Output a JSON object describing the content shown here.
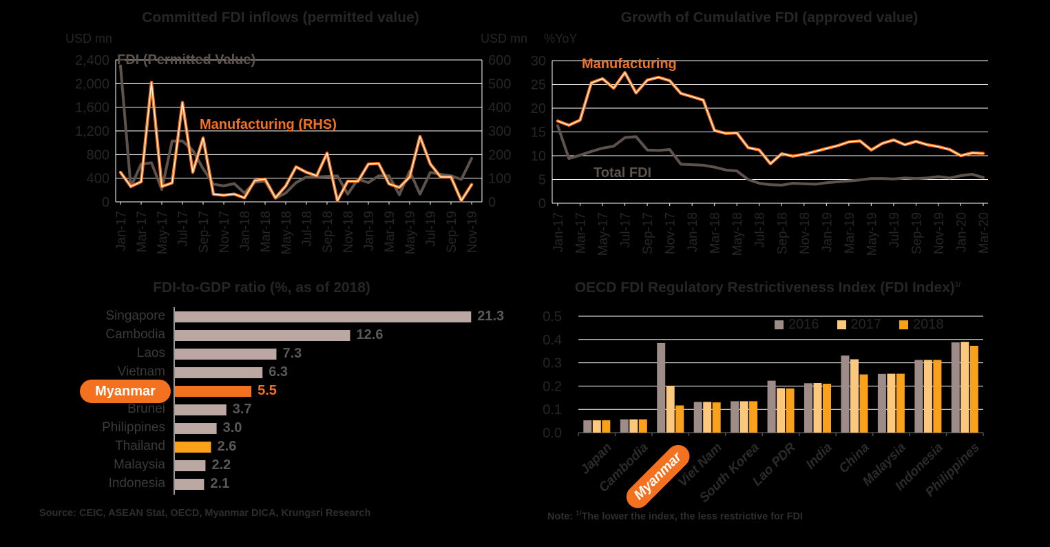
{
  "colors": {
    "background": "#000000",
    "grid": "#FFFFFF",
    "orange": "#F4711F",
    "orange_line": "#F8700F",
    "amber": "#F9A11B",
    "light_orange": "#FBC87D",
    "gray_line": "#5E524C",
    "bar_gray": "#BCA8A2",
    "bar_gray_dark": "#9D8C88",
    "text_dark": "#262626",
    "text_gray": "#595959",
    "axis_dark": "#4F4F4F"
  },
  "chart_data": [
    {
      "type": "line",
      "title": "Committed FDI inflows (permitted value)",
      "left_axis_unit": "USD mn",
      "right_axis_unit": "USD mn",
      "left_tick_labels": [
        "2,400",
        "2,000",
        "1,600",
        "1,200",
        "800",
        "400",
        "0"
      ],
      "right_tick_labels": [
        "600",
        "500",
        "400",
        "300",
        "200",
        "100",
        "0"
      ],
      "left_ylim": [
        0,
        2400
      ],
      "right_ylim": [
        0,
        600
      ],
      "x_tick_labels": [
        "Jan-17",
        "Mar-17",
        "May-17",
        "Jul-17",
        "Sep-17",
        "Nov-17",
        "Jan-18",
        "Mar-18",
        "May-18",
        "Jul-18",
        "Sep-18",
        "Nov-18",
        "Jan-19",
        "Mar-19",
        "May-19",
        "Jul-19",
        "Sep-19",
        "Nov-19"
      ],
      "series": [
        {
          "name": "FDI (Permitted Value)",
          "axis": "left",
          "color_key": "gray_line",
          "style": "solid",
          "values": [
            2300,
            250,
            640,
            660,
            210,
            1030,
            1030,
            870,
            560,
            300,
            270,
            310,
            150,
            330,
            350,
            60,
            150,
            325,
            420,
            420,
            430,
            440,
            130,
            385,
            325,
            440,
            440,
            120,
            520,
            130,
            500,
            465,
            440,
            380,
            735
          ]
        },
        {
          "name": "Manufacturing (RHS)",
          "axis": "right",
          "color_key": "orange_line",
          "style": "outlined",
          "values": [
            125,
            65,
            85,
            505,
            65,
            80,
            420,
            125,
            270,
            32,
            28,
            33,
            17,
            90,
            96,
            17,
            67,
            148,
            125,
            110,
            206,
            5,
            87,
            87,
            160,
            162,
            76,
            61,
            105,
            276,
            160,
            105,
            105,
            5,
            73
          ]
        }
      ]
    },
    {
      "type": "line",
      "title": "Growth of Cumulative FDI (approved value)",
      "left_axis_unit": "%YoY",
      "left_tick_labels": [
        "30",
        "25",
        "20",
        "15",
        "10",
        "5",
        "0"
      ],
      "left_ylim": [
        0,
        30
      ],
      "x_tick_labels": [
        "Jan-17",
        "Mar-17",
        "May-17",
        "Jul-17",
        "Sep-17",
        "Nov-17",
        "Jan-18",
        "Mar-18",
        "May-18",
        "Jul-18",
        "Sep-18",
        "Nov-18",
        "Jan-19",
        "Mar-19",
        "May-19",
        "Jul-19",
        "Sep-19",
        "Nov-19",
        "Jan-20",
        "Mar-20"
      ],
      "series": [
        {
          "name": "Manufacturing",
          "axis": "left",
          "color_key": "orange_line",
          "style": "outlined",
          "values": [
            17.3,
            16.4,
            17.5,
            25.3,
            26.2,
            24.2,
            27.5,
            23.2,
            25.9,
            26.5,
            25.8,
            23.1,
            22.4,
            21.7,
            15.3,
            14.7,
            14.8,
            11.7,
            11.2,
            8.3,
            10.4,
            9.9,
            10.3,
            10.9,
            11.5,
            12.1,
            12.9,
            13.1,
            11.2,
            12.6,
            13.3,
            12.3,
            13,
            12.3,
            11.9,
            11.3,
            10,
            10.6,
            10.5
          ]
        },
        {
          "name": "Total FDI",
          "axis": "left",
          "color_key": "gray_line",
          "style": "solid",
          "values": [
            16.3,
            9.4,
            10.1,
            10.9,
            11.6,
            12,
            13.8,
            14,
            11.2,
            11.1,
            11.3,
            8.2,
            8.1,
            8,
            7.6,
            7,
            6.8,
            5,
            4.2,
            3.9,
            3.8,
            4.2,
            4.1,
            4,
            4.3,
            4.5,
            4.7,
            4.9,
            5.2,
            5.2,
            5.1,
            5.3,
            5.2,
            5.3,
            5.6,
            5.3,
            5.8,
            6.1,
            5.4
          ]
        }
      ]
    },
    {
      "type": "bar",
      "title": "FDI-to-GDP ratio (%, as of 2018)",
      "orientation": "horizontal",
      "categories": [
        "Singapore",
        "Cambodia",
        "Laos",
        "Vietnam",
        "Myanmar",
        "Brunei",
        "Philippines",
        "Thailand",
        "Malaysia",
        "Indonesia"
      ],
      "values": [
        21.3,
        12.6,
        7.3,
        6.3,
        5.5,
        3.7,
        3,
        2.6,
        2.2,
        2.1
      ],
      "value_labels": [
        "21.3",
        "12.6",
        "7.3",
        "6.3",
        "5.5",
        "3.7",
        "3.0",
        "2.6",
        "2.2",
        "2.1"
      ],
      "bar_color_keys": [
        "bar_gray",
        "bar_gray",
        "bar_gray",
        "bar_gray",
        "orange",
        "bar_gray",
        "bar_gray",
        "amber",
        "bar_gray",
        "bar_gray"
      ],
      "highlight_category": "Myanmar",
      "xlim": [
        0,
        22
      ]
    },
    {
      "type": "bar",
      "orientation": "grouped-vertical",
      "title": "OECD FDI Regulatory Restrictiveness Index (FDI Index)",
      "title_sup": "1/",
      "y_tick_labels": [
        "0.5",
        "0.4",
        "0.3",
        "0.2",
        "0.1",
        "0.0"
      ],
      "ylim": [
        0,
        0.5
      ],
      "categories": [
        "Japan",
        "Cambodia",
        "Myanmar",
        "Viet Nam",
        "South Korea",
        "Lao PDR",
        "India",
        "China",
        "Malaysia",
        "Indonesia",
        "Philippines"
      ],
      "highlight_category": "Myanmar",
      "series": [
        {
          "name": "2016",
          "color_key": "bar_gray_dark",
          "values": [
            0.053,
            0.057,
            0.385,
            0.132,
            0.135,
            0.223,
            0.212,
            0.331,
            0.252,
            0.312,
            0.388
          ]
        },
        {
          "name": "2017",
          "color_key": "light_orange",
          "values": [
            0.053,
            0.057,
            0.201,
            0.132,
            0.135,
            0.191,
            0.213,
            0.315,
            0.253,
            0.312,
            0.39
          ]
        },
        {
          "name": "2018",
          "color_key": "amber",
          "values": [
            0.053,
            0.057,
            0.117,
            0.13,
            0.135,
            0.19,
            0.21,
            0.25,
            0.253,
            0.312,
            0.373
          ]
        }
      ]
    }
  ],
  "footer": {
    "source": "Source: CEIC, ASEAN Stat, OECD, Myanmar DICA, Krungsri Research",
    "note_label": "Note: ",
    "note_sup": "1/",
    "note_text": "The lower the index, the less restrictive for FDI"
  }
}
